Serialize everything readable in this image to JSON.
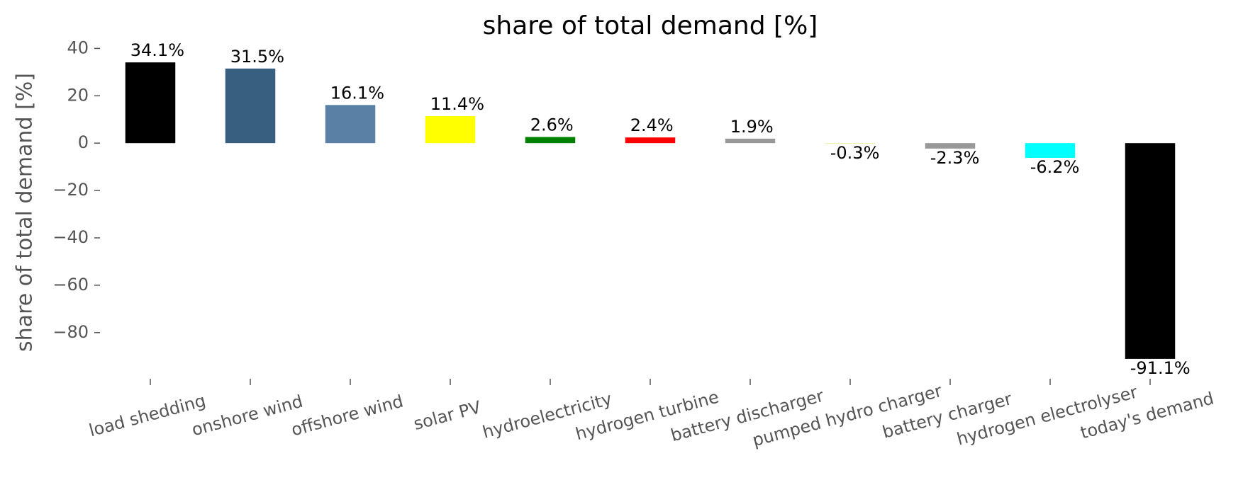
{
  "chart_data": {
    "type": "bar",
    "title": "share of total demand [%]",
    "y_label": "share of total demand [%]",
    "categories": [
      "load shedding",
      "onshore wind",
      "offshore wind",
      "solar PV",
      "hydroelectricity",
      "hydrogen turbine",
      "battery discharger",
      "pumped hydro charger",
      "battery charger",
      "hydrogen electrolyser",
      "today's demand"
    ],
    "values": [
      34.1,
      31.5,
      16.1,
      11.4,
      2.6,
      2.4,
      1.9,
      -0.3,
      -2.3,
      -6.2,
      -91.1
    ],
    "value_labels": [
      "34.1%",
      "31.5%",
      "16.1%",
      "11.4%",
      "2.6%",
      "2.4%",
      "1.9%",
      "-0.3%",
      "-2.3%",
      "-6.2%",
      "-91.1%"
    ],
    "colors": [
      "#000000",
      "#385e80",
      "#5b80a5",
      "#ffff00",
      "#008000",
      "#ff0000",
      "#999999",
      "#eeeeaa",
      "#999999",
      "#00ffff",
      "#000000"
    ],
    "ylim": [
      -99.5,
      45.5
    ],
    "yticks": [
      {
        "value": -80,
        "label": "−80"
      },
      {
        "value": -60,
        "label": "−60"
      },
      {
        "value": -40,
        "label": "−40"
      },
      {
        "value": -20,
        "label": "−20"
      },
      0,
      20,
      40
    ],
    "grid": false
  }
}
